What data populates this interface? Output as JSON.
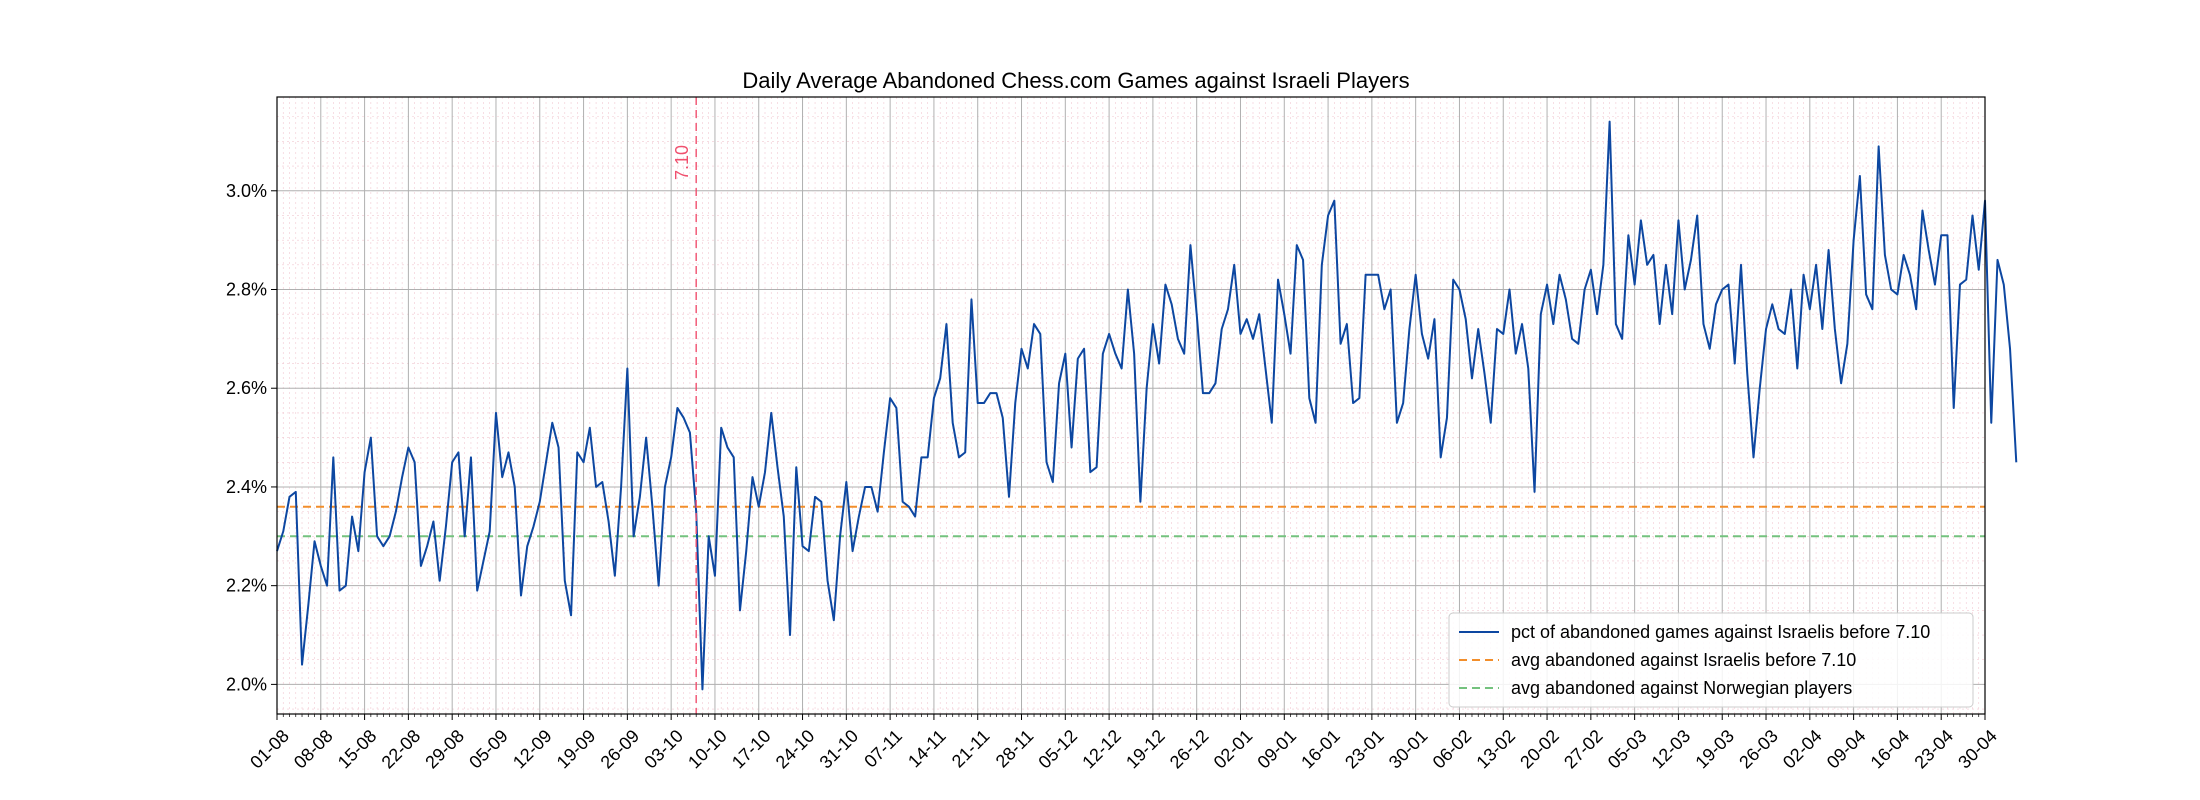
{
  "chart_data": {
    "type": "line",
    "title": "Daily Average Abandoned Chess.com Games against Israeli Players",
    "xlabel": "",
    "ylabel": "",
    "x_start": "2023-08-01",
    "x_end": "2024-04-30",
    "ylim": [
      0.0194,
      0.0319
    ],
    "y_ticks": [
      0.02,
      0.022,
      0.024,
      0.026,
      0.028,
      0.03
    ],
    "y_tick_labels": [
      "2.0%",
      "2.2%",
      "2.4%",
      "2.6%",
      "2.8%",
      "3.0%"
    ],
    "x_tick_labels": [
      "01-08",
      "08-08",
      "15-08",
      "22-08",
      "29-08",
      "05-09",
      "12-09",
      "19-09",
      "26-09",
      "03-10",
      "10-10",
      "17-10",
      "24-10",
      "31-10",
      "07-11",
      "14-11",
      "21-11",
      "28-11",
      "05-12",
      "12-12",
      "19-12",
      "26-12",
      "02-01",
      "09-01",
      "16-01",
      "23-01",
      "30-01",
      "06-02",
      "13-02",
      "20-02",
      "27-02",
      "05-03",
      "12-03",
      "19-03",
      "26-03",
      "02-04",
      "09-04",
      "16-04",
      "23-04",
      "30-04"
    ],
    "grid": true,
    "legend_position": "bottom-right",
    "annotation": {
      "label": "7.10",
      "x": "2023-10-07",
      "color": "#f0506e"
    },
    "series": [
      {
        "name": "pct of abandoned games against Israelis before 7.10",
        "color": "#0d47a1",
        "style": "solid",
        "values": [
          0.0227,
          0.0231,
          0.0238,
          0.0239,
          0.0204,
          0.0216,
          0.0229,
          0.0224,
          0.022,
          0.0246,
          0.0219,
          0.022,
          0.0234,
          0.0227,
          0.0243,
          0.025,
          0.023,
          0.0228,
          0.023,
          0.0235,
          0.0242,
          0.0248,
          0.0245,
          0.0224,
          0.0228,
          0.0233,
          0.0221,
          0.0232,
          0.0245,
          0.0247,
          0.023,
          0.0246,
          0.0219,
          0.0225,
          0.0231,
          0.0255,
          0.0242,
          0.0247,
          0.024,
          0.0218,
          0.0228,
          0.0232,
          0.0237,
          0.0245,
          0.0253,
          0.0248,
          0.0221,
          0.0214,
          0.0247,
          0.0245,
          0.0252,
          0.024,
          0.0241,
          0.0233,
          0.0222,
          0.024,
          0.0264,
          0.023,
          0.0238,
          0.025,
          0.0236,
          0.022,
          0.024,
          0.0246,
          0.0256,
          0.0254,
          0.0251,
          0.0235,
          0.0199,
          0.023,
          0.0222,
          0.0252,
          0.0248,
          0.0246,
          0.0215,
          0.0227,
          0.0242,
          0.0236,
          0.0243,
          0.0255,
          0.0244,
          0.0234,
          0.021,
          0.0244,
          0.0228,
          0.0227,
          0.0238,
          0.0237,
          0.0221,
          0.0213,
          0.023,
          0.0241,
          0.0227,
          0.0234,
          0.024,
          0.024,
          0.0235,
          0.0247,
          0.0258,
          0.0256,
          0.0237,
          0.0236,
          0.0234,
          0.0246,
          0.0246,
          0.0258,
          0.0262,
          0.0273,
          0.0253,
          0.0246,
          0.0247,
          0.0278,
          0.0257,
          0.0257,
          0.0259,
          0.0259,
          0.0254,
          0.0238,
          0.0257,
          0.0268,
          0.0264,
          0.0273,
          0.0271,
          0.0245,
          0.0241,
          0.0261,
          0.0267,
          0.0248,
          0.0266,
          0.0268,
          0.0243,
          0.0244,
          0.0267,
          0.0271,
          0.0267,
          0.0264,
          0.028,
          0.0267,
          0.0237,
          0.026,
          0.0273,
          0.0265,
          0.0281,
          0.0277,
          0.027,
          0.0267,
          0.0289,
          0.0275,
          0.0259,
          0.0259,
          0.0261,
          0.0272,
          0.0276,
          0.0285,
          0.0271,
          0.0274,
          0.027,
          0.0275,
          0.0264,
          0.0253,
          0.0282,
          0.0275,
          0.0267,
          0.0289,
          0.0286,
          0.0258,
          0.0253,
          0.0285,
          0.0295,
          0.0298,
          0.0269,
          0.0273,
          0.0257,
          0.0258,
          0.0283,
          0.0283,
          0.0283,
          0.0276,
          0.028,
          0.0253,
          0.0257,
          0.0272,
          0.0283,
          0.0271,
          0.0266,
          0.0274,
          0.0246,
          0.0254,
          0.0282,
          0.028,
          0.0274,
          0.0262,
          0.0272,
          0.0263,
          0.0253,
          0.0272,
          0.0271,
          0.028,
          0.0267,
          0.0273,
          0.0264,
          0.0239,
          0.0275,
          0.0281,
          0.0273,
          0.0283,
          0.0278,
          0.027,
          0.0269,
          0.028,
          0.0284,
          0.0275,
          0.0285,
          0.0314,
          0.0273,
          0.027,
          0.0291,
          0.0281,
          0.0294,
          0.0285,
          0.0287,
          0.0273,
          0.0285,
          0.0275,
          0.0294,
          0.028,
          0.0286,
          0.0295,
          0.0273,
          0.0268,
          0.0277,
          0.028,
          0.0281,
          0.0265,
          0.0285,
          0.0263,
          0.0246,
          0.026,
          0.0272,
          0.0277,
          0.0272,
          0.0271,
          0.028,
          0.0264,
          0.0283,
          0.0276,
          0.0285,
          0.0272,
          0.0288,
          0.0272,
          0.0261,
          0.0269,
          0.029,
          0.0303,
          0.0279,
          0.0276,
          0.0309,
          0.0287,
          0.028,
          0.0279,
          0.0287,
          0.0283,
          0.0276,
          0.0296,
          0.0288,
          0.0281,
          0.0291,
          0.0291,
          0.0256,
          0.0281,
          0.0282,
          0.0295,
          0.0284,
          0.0298,
          0.0253,
          0.0286,
          0.0281,
          0.0268,
          0.0245
        ]
      },
      {
        "name": "avg abandoned against Israelis before 7.10",
        "color": "#f28e2b",
        "style": "dashed",
        "value": 0.0236
      },
      {
        "name": "avg abandoned against Norwegian players",
        "color": "#74c27e",
        "style": "dashed",
        "value": 0.023
      }
    ]
  }
}
